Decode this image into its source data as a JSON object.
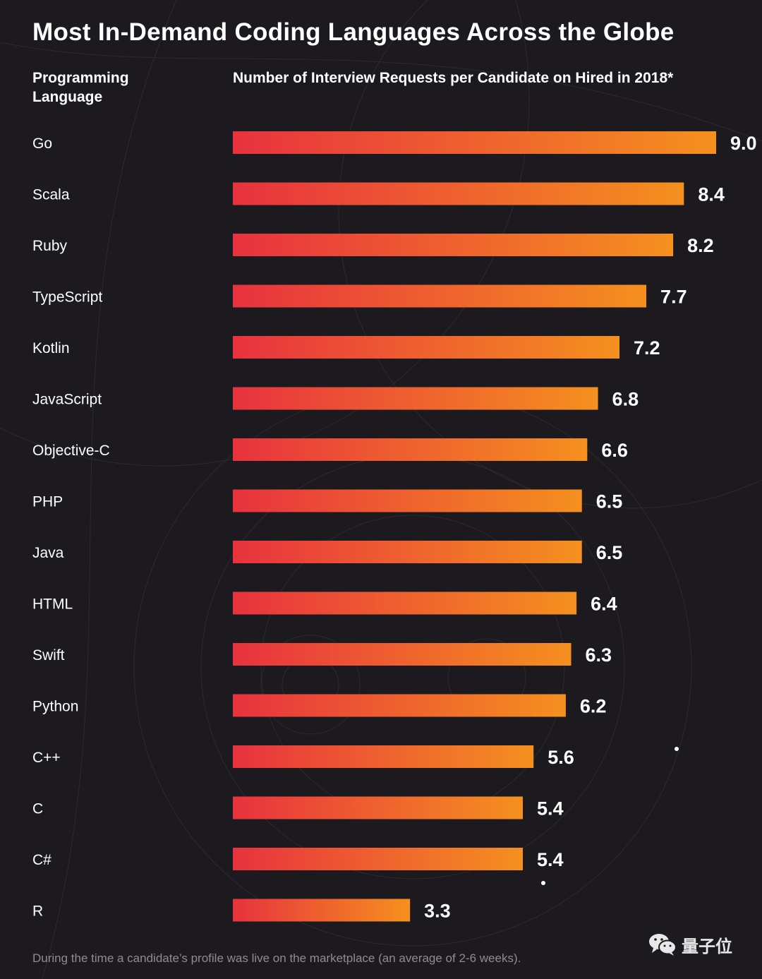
{
  "title": "Most In-Demand Coding Languages Across the Globe",
  "headers": {
    "language": "Programming Language",
    "metric": "Number of Interview Requests per Candidate on Hired in 2018*"
  },
  "chart_data": {
    "type": "bar",
    "orientation": "horizontal",
    "title": "Most In-Demand Coding Languages Across the Globe",
    "xlabel": "Number of Interview Requests per Candidate on Hired in 2018*",
    "ylabel": "Programming Language",
    "xlim": [
      0,
      9.0
    ],
    "categories": [
      "Go",
      "Scala",
      "Ruby",
      "TypeScript",
      "Kotlin",
      "JavaScript",
      "Objective-C",
      "PHP",
      "Java",
      "HTML",
      "Swift",
      "Python",
      "C++",
      "C",
      "C#",
      "R"
    ],
    "values": [
      9.0,
      8.4,
      8.2,
      7.7,
      7.2,
      6.8,
      6.6,
      6.5,
      6.5,
      6.4,
      6.3,
      6.2,
      5.6,
      5.4,
      5.4,
      3.3
    ],
    "value_labels": [
      "9.0",
      "8.4",
      "8.2",
      "7.7",
      "7.2",
      "6.8",
      "6.6",
      "6.5",
      "6.5",
      "6.4",
      "6.3",
      "6.2",
      "5.6",
      "5.4",
      "5.4",
      "3.3"
    ],
    "bar_gradient": [
      "#e8323f",
      "#f5901f"
    ]
  },
  "footnote": "During the time a candidate’s profile was live on the marketplace (an average of 2-6 weeks).",
  "watermark": {
    "icon": "wechat-icon",
    "text": "量子位"
  },
  "colors": {
    "background": "#1c1a1f",
    "text": "#ffffff",
    "footnote": "#8f8b93"
  }
}
